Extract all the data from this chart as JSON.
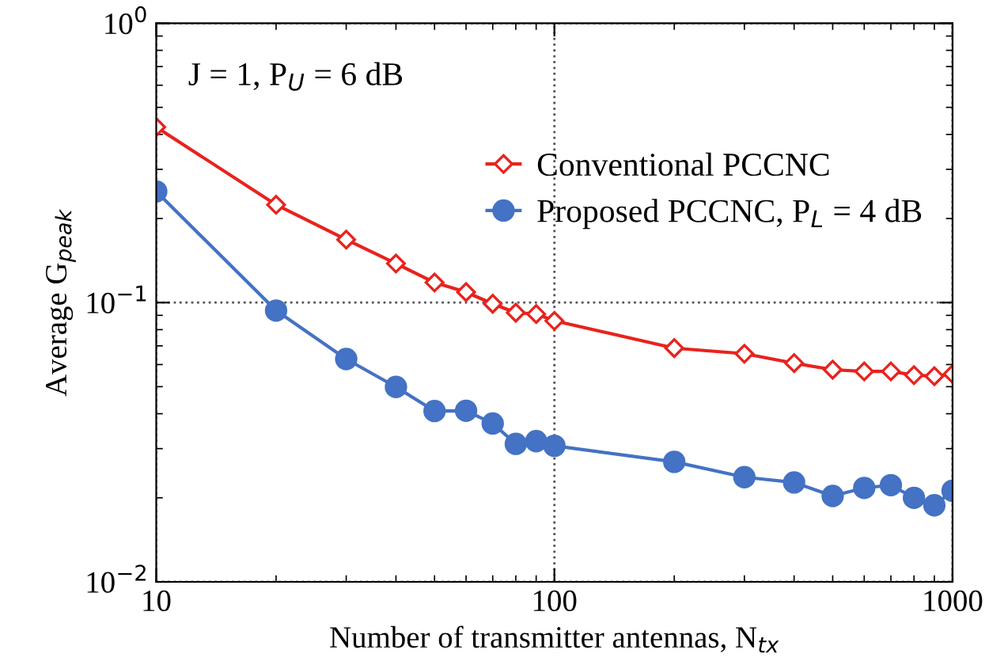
{
  "chart_data": {
    "type": "line",
    "xlabel": "Number of transmitter antennas, N$_{tx}$",
    "ylabel": "Average G$_{peak}$",
    "annotations": [
      "J = 1, P$_{U}$ = 6 dB"
    ],
    "x": [
      10,
      20,
      30,
      40,
      50,
      60,
      70,
      80,
      90,
      100,
      200,
      300,
      400,
      500,
      600,
      700,
      800,
      900,
      1000
    ],
    "series": [
      {
        "name": "Conventional PCCNC",
        "color": "#e8231e",
        "marker": "diamond",
        "values": [
          0.425,
          0.224,
          0.168,
          0.138,
          0.118,
          0.109,
          0.099,
          0.092,
          0.091,
          0.086,
          0.0687,
          0.0656,
          0.0607,
          0.0575,
          0.0567,
          0.0567,
          0.055,
          0.0545,
          0.0555
        ]
      },
      {
        "name": "Proposed PCCNC, P$_{L}$ = 4 dB",
        "color": "#4472c4",
        "marker": "circle",
        "values": [
          0.25,
          0.0936,
          0.0628,
          0.0499,
          0.0409,
          0.041,
          0.0369,
          0.0312,
          0.0319,
          0.0307,
          0.0269,
          0.0237,
          0.0227,
          0.0203,
          0.0217,
          0.0222,
          0.02,
          0.0188,
          0.0212
        ]
      }
    ],
    "log": "xy",
    "xlim": [
      10,
      1000
    ],
    "ylim": [
      0.01,
      1
    ],
    "xticks": [
      10,
      100,
      1000
    ],
    "yticks": [
      {
        "value": 0.01,
        "label": "10$^{−2}$"
      },
      {
        "value": 0.1,
        "label": "10$^{−1}$"
      },
      {
        "value": 1,
        "label": "10$^{0}$"
      }
    ],
    "grid": true,
    "legend": "right",
    "line_style": "solid"
  }
}
